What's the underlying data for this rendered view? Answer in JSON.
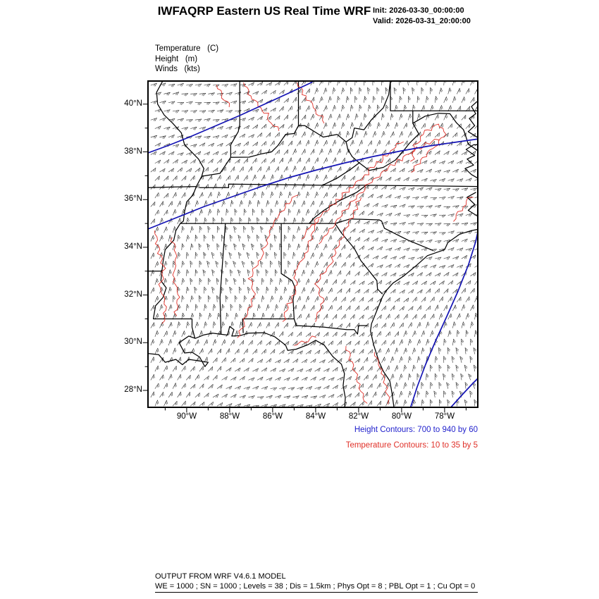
{
  "header": {
    "title": "IWFAQRP Eastern US Real Time WRF",
    "init": "Init: 2026-03-30_00:00:00",
    "valid": "Valid: 2026-03-31_20:00:00"
  },
  "legend": {
    "temperature": "Temperature   (C)",
    "height": "Height   (m)",
    "winds": "Winds   (kts)"
  },
  "map": {
    "lat_ticks": [
      "40°N",
      "38°N",
      "36°N",
      "34°N",
      "32°N",
      "30°N",
      "28°N"
    ],
    "lon_ticks": [
      "90°W",
      "88°W",
      "86°W",
      "84°W",
      "82°W",
      "80°W",
      "78°W"
    ]
  },
  "annotations": {
    "height_contours": "Height Contours: 700 to 940 by 60",
    "temperature_contours": "Temperature Contours: 10 to 35 by 5"
  },
  "footer": {
    "line1": "OUTPUT FROM WRF V4.6.1 MODEL",
    "line2": "WE = 1000 ; SN = 1000 ; Levels = 38 ; Dis = 1.5km ; Phys Opt = 8 ; PBL Opt = 1 ; Cu Opt = 0"
  },
  "colors": {
    "height_contour": "#1414b4",
    "temperature_contour": "#e03028",
    "boundary": "#000000",
    "wind_barb": "#1c1c1c",
    "height_note_text": "#2323cd",
    "temperature_note_text": "#e03028"
  }
}
